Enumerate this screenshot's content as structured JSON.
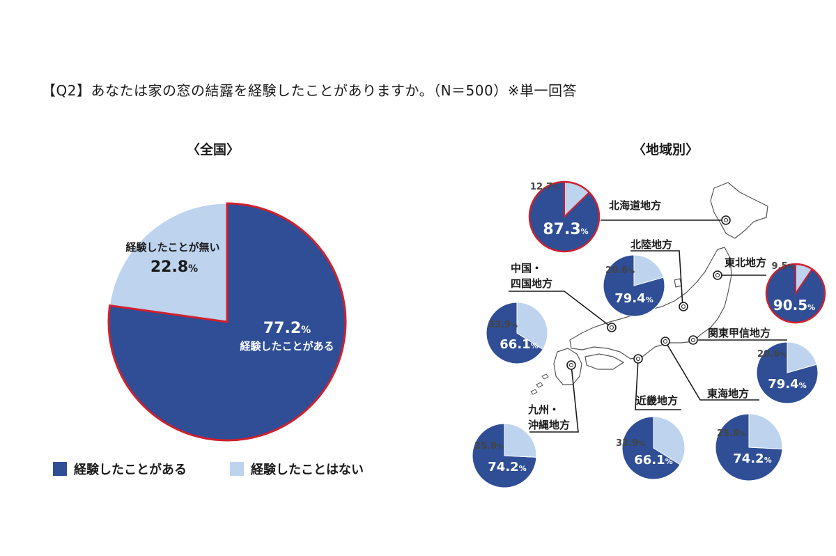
{
  "title": "【Q2】あなたは家の窓の結露を経験したことがありますか。（N＝500）※単一回答",
  "colors": {
    "yes": "#2f4e95",
    "no": "#bdd3ee",
    "highlight": "#d0202e",
    "map": "#ffffff",
    "mapStroke": "#555555"
  },
  "chart_data": [
    {
      "type": "pie",
      "subtitle": "〈全国〉",
      "title": "全国",
      "slices": [
        {
          "label": "経験したことがある",
          "value": 77.2,
          "display": "77.2",
          "unit": "%"
        },
        {
          "label": "経験したことが無い",
          "value": 22.8,
          "display": "22.8",
          "unit": "%"
        }
      ],
      "legend": [
        "経験したことがある",
        "経験したことはない"
      ]
    },
    {
      "type": "pie",
      "subtitle": "〈地域別〉",
      "regions": [
        {
          "name": "北海道地方",
          "yes": 87.3,
          "no": 12.7,
          "yes_label": "87.3",
          "no_label": "12.7",
          "highlight": true
        },
        {
          "name": "北陸地方",
          "yes": 79.4,
          "no": 20.6,
          "yes_label": "79.4",
          "no_label": "20.6",
          "highlight": false
        },
        {
          "name": "東北地方",
          "yes": 90.5,
          "no": 9.5,
          "yes_label": "90.5",
          "no_label": "9.5",
          "highlight": true
        },
        {
          "name": "中国・四国地方",
          "line1": "中国・",
          "line2": "四国地方",
          "yes": 66.1,
          "no": 33.9,
          "yes_label": "66.1",
          "no_label": "33.9",
          "highlight": false
        },
        {
          "name": "関東甲信地方",
          "yes": 79.4,
          "no": 20.6,
          "yes_label": "79.4",
          "no_label": "20.6",
          "highlight": false
        },
        {
          "name": "東海地方",
          "yes": 74.2,
          "no": 25.8,
          "yes_label": "74.2",
          "no_label": "25.8",
          "highlight": false
        },
        {
          "name": "近畿地方",
          "yes": 66.1,
          "no": 33.9,
          "yes_label": "66.1",
          "no_label": "33.9",
          "highlight": false
        },
        {
          "name": "九州・沖縄地方",
          "line1": "九州・",
          "line2": "沖縄地方",
          "yes": 74.2,
          "no": 25.8,
          "yes_label": "74.2",
          "no_label": "25.8",
          "highlight": false
        }
      ]
    }
  ],
  "unit": "%"
}
